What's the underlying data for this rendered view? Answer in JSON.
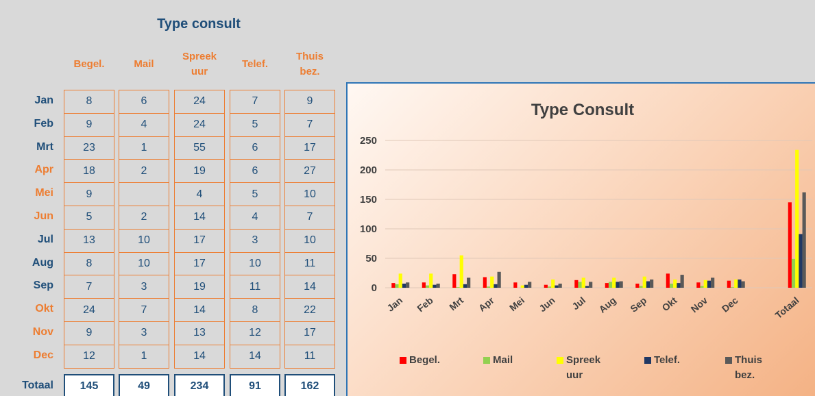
{
  "table": {
    "title": "Type consult",
    "columns": [
      "Begel.",
      "Mail",
      "Spreek uur",
      "Telef.",
      "Thuis bez."
    ],
    "rows": [
      {
        "label": "Jan",
        "color": "#1f4e79",
        "values": [
          8,
          6,
          24,
          7,
          9
        ]
      },
      {
        "label": "Feb",
        "color": "#1f4e79",
        "values": [
          9,
          4,
          24,
          5,
          7
        ]
      },
      {
        "label": "Mrt",
        "color": "#1f4e79",
        "values": [
          23,
          1,
          55,
          6,
          17
        ]
      },
      {
        "label": "Apr",
        "color": "#ed7d31",
        "values": [
          18,
          2,
          19,
          6,
          27
        ]
      },
      {
        "label": "Mei",
        "color": "#ed7d31",
        "values": [
          9,
          null,
          4,
          5,
          10
        ]
      },
      {
        "label": "Jun",
        "color": "#ed7d31",
        "values": [
          5,
          2,
          14,
          4,
          7
        ]
      },
      {
        "label": "Jul",
        "color": "#1f4e79",
        "values": [
          13,
          10,
          17,
          3,
          10
        ]
      },
      {
        "label": "Aug",
        "color": "#1f4e79",
        "values": [
          8,
          10,
          17,
          10,
          11
        ]
      },
      {
        "label": "Sep",
        "color": "#1f4e79",
        "values": [
          7,
          3,
          19,
          11,
          14
        ]
      },
      {
        "label": "Okt",
        "color": "#ed7d31",
        "values": [
          24,
          7,
          14,
          8,
          22
        ]
      },
      {
        "label": "Nov",
        "color": "#ed7d31",
        "values": [
          9,
          3,
          13,
          12,
          17
        ]
      },
      {
        "label": "Dec",
        "color": "#ed7d31",
        "values": [
          12,
          1,
          14,
          14,
          11
        ]
      }
    ],
    "total": {
      "label": "Totaal",
      "values": [
        145,
        49,
        234,
        91,
        162
      ]
    }
  },
  "chart_data": {
    "type": "bar",
    "title": "Type Consult",
    "categories": [
      "Jan",
      "Feb",
      "Mrt",
      "Apr",
      "Mei",
      "Jun",
      "Jul",
      "Aug",
      "Sep",
      "Okt",
      "Nov",
      "Dec",
      null,
      "Totaal"
    ],
    "series": [
      {
        "name": "Begel.",
        "color": "#ff0000",
        "values": [
          8,
          9,
          23,
          18,
          9,
          5,
          13,
          8,
          7,
          24,
          9,
          12,
          null,
          145
        ]
      },
      {
        "name": "Mail",
        "color": "#92d050",
        "values": [
          6,
          4,
          1,
          2,
          null,
          2,
          10,
          10,
          3,
          7,
          3,
          1,
          null,
          49
        ]
      },
      {
        "name": "Spreek uur",
        "color": "#ffff00",
        "values": [
          24,
          24,
          55,
          19,
          4,
          14,
          17,
          17,
          19,
          14,
          13,
          14,
          null,
          234
        ]
      },
      {
        "name": "Telef.",
        "color": "#203864",
        "values": [
          7,
          5,
          6,
          6,
          5,
          4,
          3,
          10,
          11,
          8,
          12,
          14,
          null,
          91
        ]
      },
      {
        "name": "Thuis bez.",
        "color": "#595959",
        "values": [
          9,
          7,
          17,
          27,
          10,
          7,
          10,
          11,
          14,
          22,
          17,
          11,
          null,
          162
        ]
      }
    ],
    "ylim": [
      0,
      250
    ],
    "yticks": [
      0,
      50,
      100,
      150,
      200,
      250
    ],
    "grid": true,
    "legend": "bottom"
  }
}
